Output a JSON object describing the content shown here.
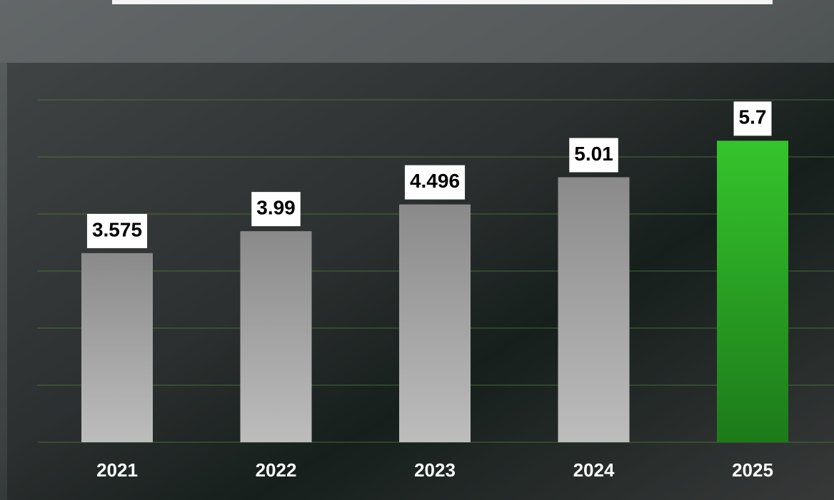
{
  "chart_data": {
    "type": "bar",
    "categories": [
      "2021",
      "2022",
      "2023",
      "2024",
      "2025"
    ],
    "values": [
      3.575,
      3.99,
      4.496,
      5.01,
      5.7
    ],
    "colors": [
      "#a8a8a8",
      "#a8a8a8",
      "#a8a8a8",
      "#a8a8a8",
      "#2db82a"
    ],
    "ylim": [
      0,
      6.5
    ]
  }
}
